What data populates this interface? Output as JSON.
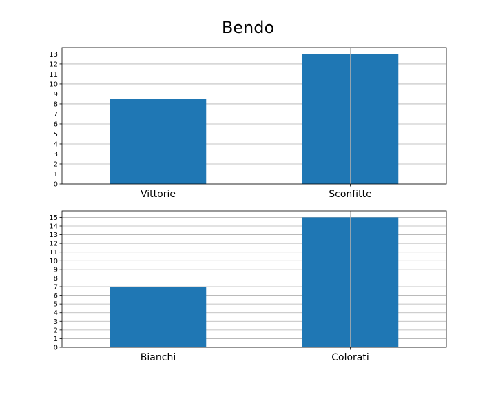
{
  "title": "Bendo",
  "chart_data": [
    {
      "type": "bar",
      "categories": [
        "Vittorie",
        "Sconfitte"
      ],
      "values": [
        8.5,
        13
      ],
      "ylim": [
        0,
        13.65
      ],
      "yticks": [
        0,
        1,
        2,
        3,
        4,
        5,
        6,
        7,
        8,
        9,
        10,
        11,
        12,
        13
      ],
      "grid": true,
      "color": "#1f77b4"
    },
    {
      "type": "bar",
      "categories": [
        "Bianchi",
        "Colorati"
      ],
      "values": [
        7,
        15
      ],
      "ylim": [
        0,
        15.75
      ],
      "yticks": [
        0,
        1,
        2,
        3,
        4,
        5,
        6,
        7,
        8,
        9,
        10,
        11,
        12,
        13,
        14,
        15
      ],
      "grid": true,
      "color": "#1f77b4"
    }
  ]
}
